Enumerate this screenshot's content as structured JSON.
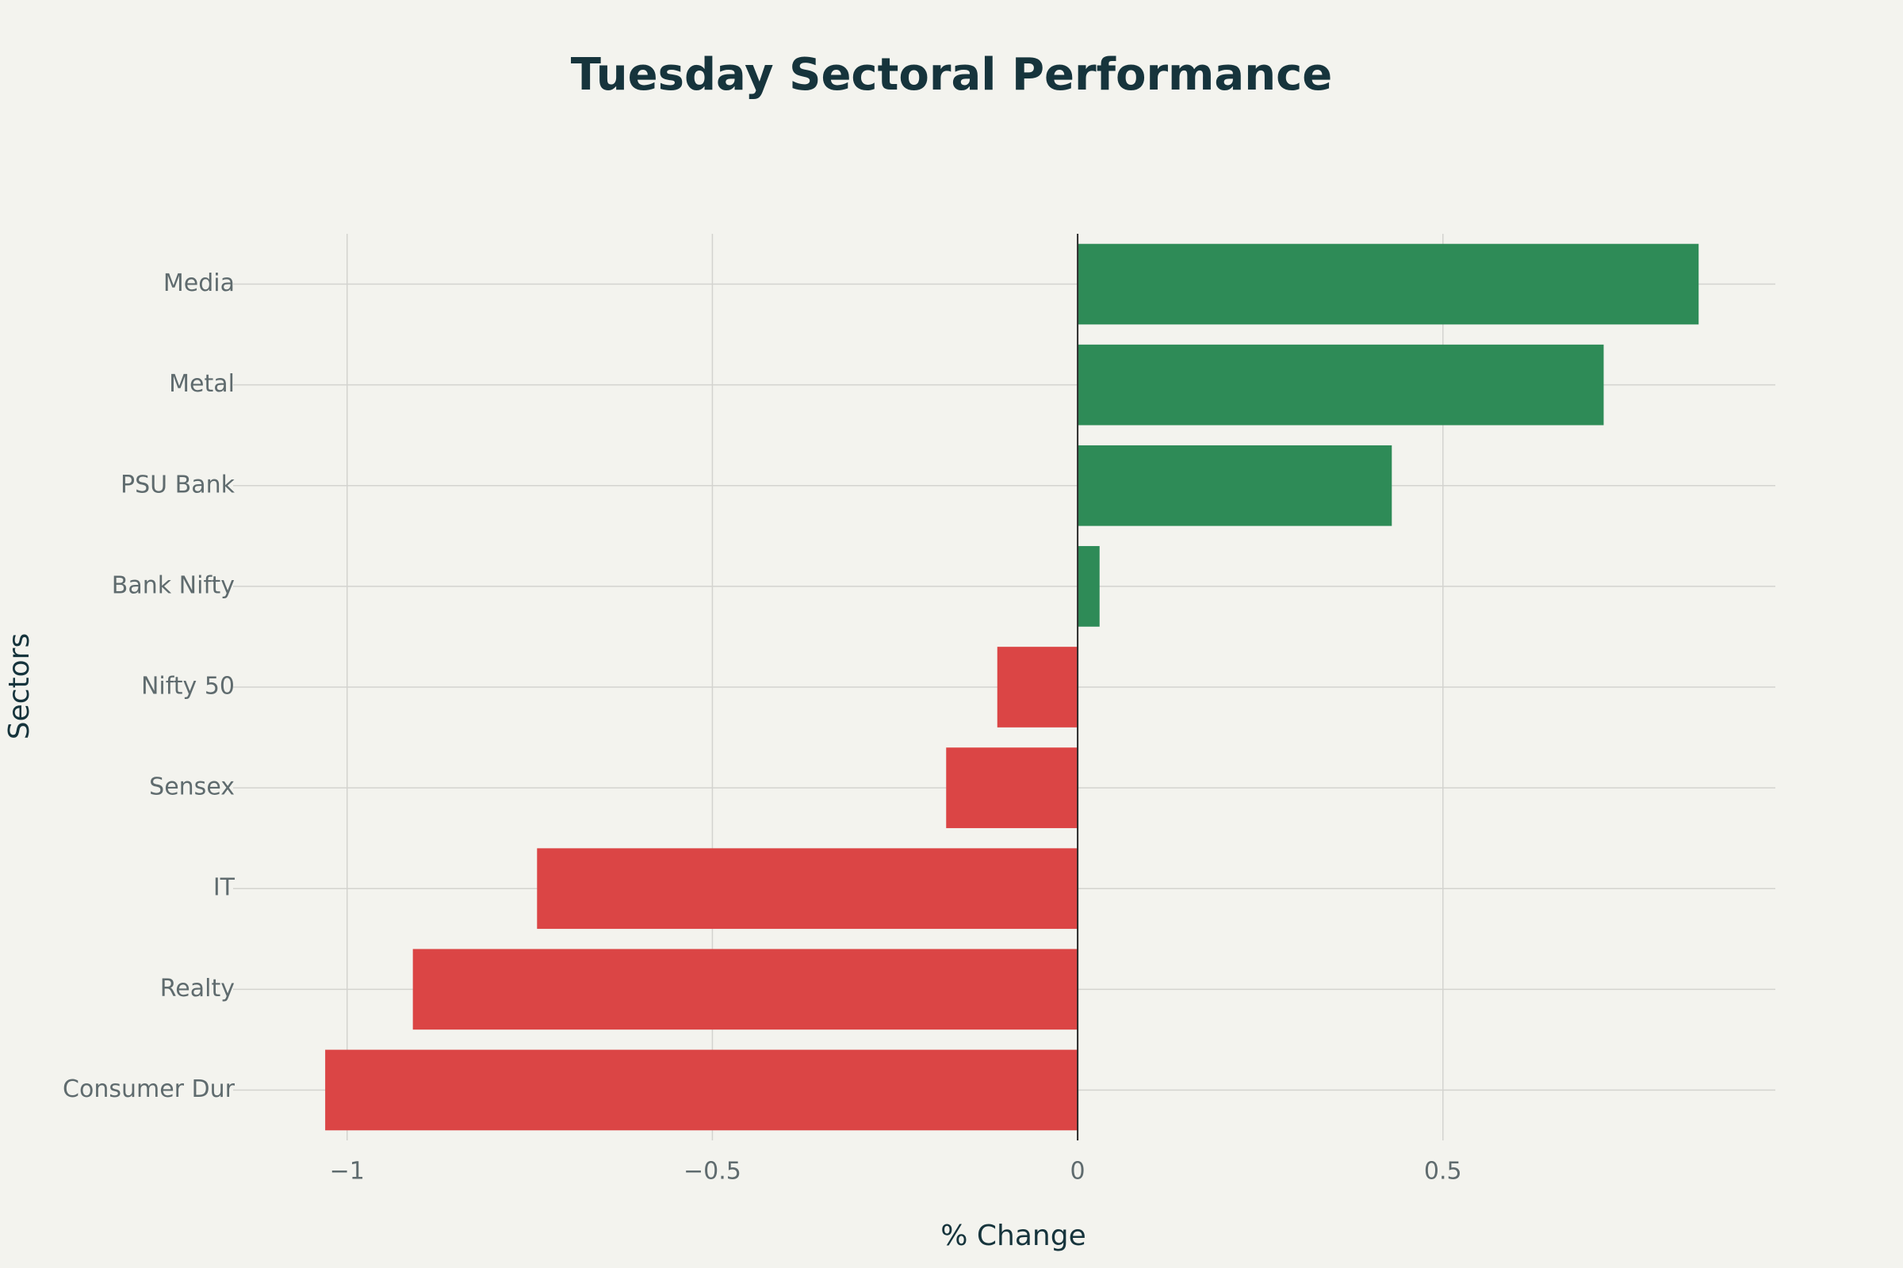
{
  "chart_data": {
    "type": "hbar",
    "title": "Tuesday Sectoral Performance",
    "x_label": "% Change",
    "y_label": "Sectors",
    "categories": [
      "Media",
      "Metal",
      "PSU Bank",
      "Bank Nifty",
      "Nifty 50",
      "Sensex",
      "IT",
      "Realty",
      "Consumer Dur"
    ],
    "values": [
      0.85,
      0.72,
      0.43,
      0.03,
      -0.11,
      -0.18,
      -0.74,
      -0.91,
      -1.03
    ],
    "colors": [
      "#2e8b57",
      "#2e8b57",
      "#2e8b57",
      "#2e8b57",
      "#db4545",
      "#db4545",
      "#db4545",
      "#db4545",
      "#db4545"
    ],
    "xlim": [
      -1.143,
      0.955
    ],
    "xticks": [
      {
        "value": -1,
        "label": "−1"
      },
      {
        "value": -0.5,
        "label": "−0.5"
      },
      0,
      0.5
    ],
    "grid": true
  }
}
